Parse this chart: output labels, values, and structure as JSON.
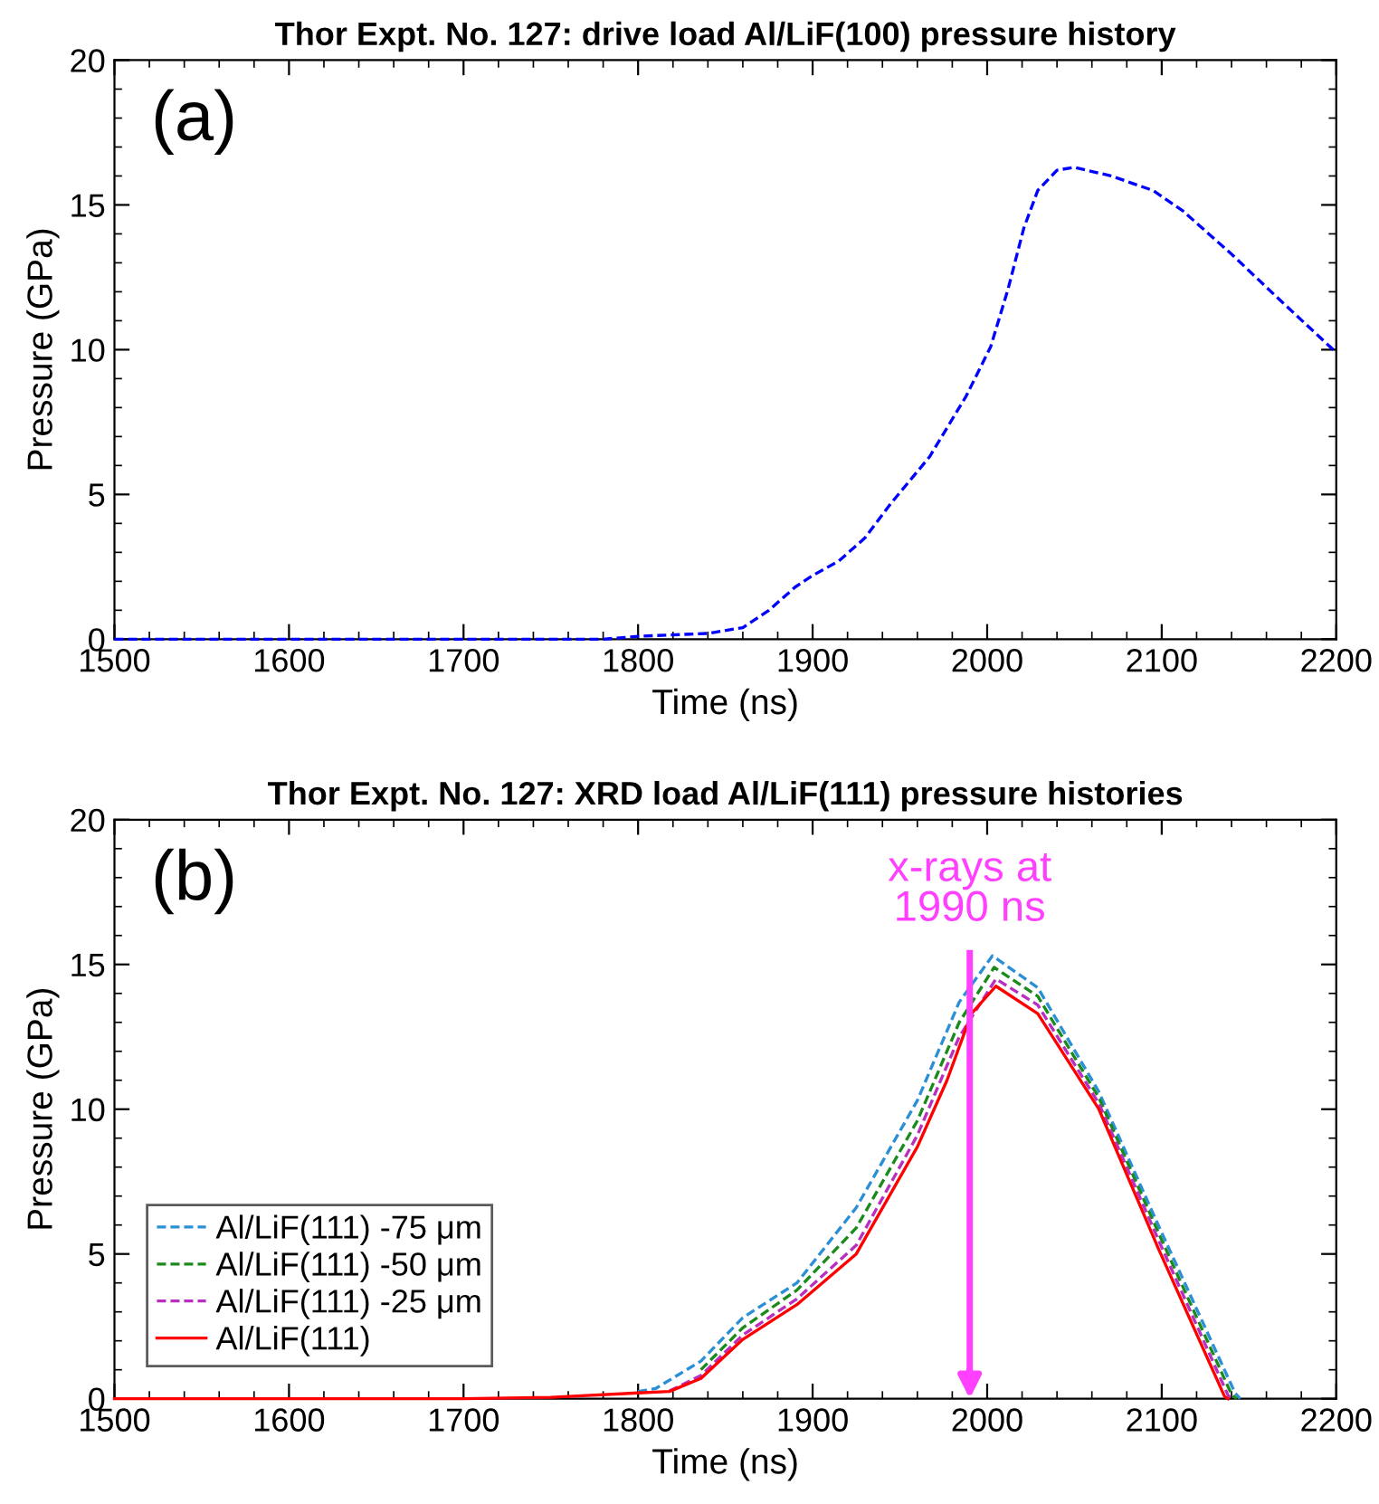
{
  "chart_data": [
    {
      "type": "line",
      "title": "Thor Expt. No. 127: drive load Al/LiF(100) pressure history",
      "xlabel": "Time (ns)",
      "ylabel": "Pressure (GPa)",
      "annotations": [
        "(a)"
      ],
      "xlim": [
        1500,
        2200
      ],
      "ylim": [
        0,
        20
      ],
      "xticks": [
        1500,
        1600,
        1700,
        1800,
        1900,
        2000,
        2100,
        2200
      ],
      "yticks": [
        0,
        5,
        10,
        15,
        20
      ],
      "grid": false,
      "legend": false,
      "series": [
        {
          "color": "#0000ff",
          "line_style": "dashed",
          "x": [
            1500,
            1780,
            1800,
            1840,
            1860,
            1875,
            1890,
            1900,
            1915,
            1930,
            1945,
            1967,
            1988,
            2002,
            2012,
            2021,
            2029,
            2040,
            2050,
            2071,
            2095,
            2112,
            2140,
            2168,
            2200
          ],
          "values": [
            0,
            0,
            0.1,
            0.2,
            0.4,
            1.0,
            1.8,
            2.2,
            2.7,
            3.5,
            4.7,
            6.3,
            8.4,
            10.1,
            12.1,
            14.2,
            15.5,
            16.2,
            16.3,
            16.0,
            15.5,
            14.8,
            13.3,
            11.7,
            9.9
          ]
        }
      ]
    },
    {
      "type": "line",
      "title": "Thor Expt. No. 127: XRD load Al/LiF(111) pressure histories",
      "xlabel": "Time (ns)",
      "ylabel": "Pressure (GPa)",
      "annotations": [
        "(b)"
      ],
      "ref_lines": [
        {
          "axis": "x",
          "value": 1990,
          "label": "x-rays at\n1990 ns",
          "color": "#ff40ff"
        }
      ],
      "xlim": [
        1500,
        2200
      ],
      "ylim": [
        0,
        20
      ],
      "xticks": [
        1500,
        1600,
        1700,
        1800,
        1900,
        2000,
        2100,
        2200
      ],
      "yticks": [
        0,
        5,
        10,
        15,
        20
      ],
      "grid": false,
      "legend": "lower left",
      "series": [
        {
          "name": "Al/LiF(111) -75 μm",
          "color": "#2b8fd6",
          "line_style": "dashed",
          "x": [
            1800,
            1810,
            1836,
            1860,
            1891,
            1925,
            1960,
            1984,
            2003,
            2029,
            2064,
            2098,
            2142,
            2145
          ],
          "values": [
            0.25,
            0.35,
            1.3,
            2.8,
            4.0,
            6.6,
            10.3,
            13.7,
            15.3,
            14.2,
            10.6,
            6.0,
            0.2,
            0
          ]
        },
        {
          "name": "Al/LiF(111) -50 μm",
          "color": "#1a8a1a",
          "line_style": "dashed",
          "x": [
            1836,
            1860,
            1891,
            1925,
            1960,
            1984,
            2004,
            2029,
            2064,
            2098,
            2140,
            2143
          ],
          "values": [
            1.0,
            2.45,
            3.75,
            5.9,
            9.6,
            13.0,
            14.9,
            13.9,
            10.4,
            5.75,
            0.15,
            0
          ]
        },
        {
          "name": "Al/LiF(111) -25 μm",
          "color": "#b82fc0",
          "line_style": "dashed",
          "x": [
            1818,
            1836,
            1860,
            1891,
            1925,
            1960,
            1984,
            2005,
            2029,
            2064,
            2098,
            2138,
            2140
          ],
          "values": [
            0.27,
            0.8,
            2.2,
            3.45,
            5.3,
            9.1,
            12.5,
            14.5,
            13.6,
            10.2,
            5.5,
            0.12,
            0
          ]
        },
        {
          "name": "Al/LiF(111)",
          "color": "#ff0000",
          "line_style": "solid",
          "x": [
            1500,
            1700,
            1750,
            1800,
            1818,
            1836,
            1860,
            1891,
            1925,
            1960,
            1977,
            1991,
            2005,
            2029,
            2064,
            2098,
            2136,
            2138
          ],
          "values": [
            0,
            0,
            0.05,
            0.2,
            0.25,
            0.7,
            2.05,
            3.25,
            5.0,
            8.7,
            11.0,
            13.3,
            14.25,
            13.3,
            10.0,
            5.2,
            0.08,
            0
          ]
        }
      ]
    }
  ]
}
